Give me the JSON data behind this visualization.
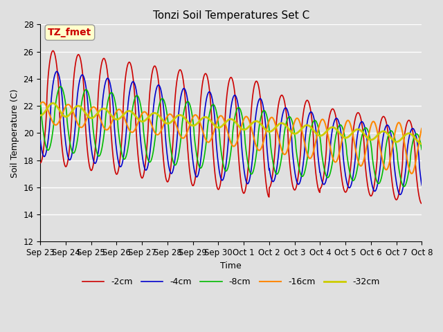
{
  "title": "Tonzi Soil Temperatures Set C",
  "xlabel": "Time",
  "ylabel": "Soil Temperature (C)",
  "ylim": [
    12,
    28
  ],
  "xlim": [
    0,
    15
  ],
  "annotation": "TZ_fmet",
  "annotation_color": "#cc0000",
  "annotation_bg": "#ffffcc",
  "bg_color": "#e0e0e0",
  "plot_bg": "#e0e0e0",
  "grid_color": "#ffffff",
  "x_tick_labels": [
    "Sep 23",
    "Sep 24",
    "Sep 25",
    "Sep 26",
    "Sep 27",
    "Sep 28",
    "Sep 29",
    "Sep 30",
    "Oct 1",
    "Oct 2",
    "Oct 3",
    "Oct 4",
    "Oct 5",
    "Oct 6",
    "Oct 7",
    "Oct 8"
  ],
  "series": {
    "-2cm": {
      "color": "#cc0000",
      "lw": 1.2
    },
    "-4cm": {
      "color": "#0000cc",
      "lw": 1.2
    },
    "-8cm": {
      "color": "#00bb00",
      "lw": 1.2
    },
    "-16cm": {
      "color": "#ff8800",
      "lw": 1.5
    },
    "-32cm": {
      "color": "#cccc00",
      "lw": 2.0
    }
  },
  "figsize": [
    6.4,
    4.8
  ],
  "dpi": 100
}
